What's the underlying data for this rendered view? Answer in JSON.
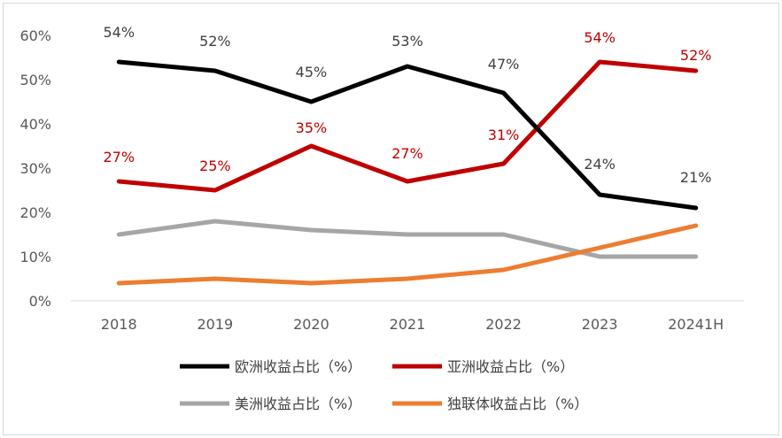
{
  "chart_data": {
    "type": "line",
    "categories": [
      "2018",
      "2019",
      "2020",
      "2021",
      "2022",
      "2023",
      "20241H"
    ],
    "y_ticks": [
      "0%",
      "10%",
      "20%",
      "30%",
      "40%",
      "50%",
      "60%"
    ],
    "ylim": [
      0,
      60
    ],
    "grid": false,
    "legend_position": "bottom",
    "series": [
      {
        "name": "欧洲收益占比（%）",
        "color": "#000000",
        "values": [
          54,
          52,
          45,
          53,
          47,
          24,
          21
        ],
        "labels": [
          "54%",
          "52%",
          "45%",
          "53%",
          "47%",
          "24%",
          "21%"
        ],
        "label_color": "#404040"
      },
      {
        "name": "亚洲收益占比（%）",
        "color": "#c00000",
        "values": [
          27,
          25,
          35,
          27,
          31,
          54,
          52
        ],
        "labels": [
          "27%",
          "25%",
          "35%",
          "27%",
          "31%",
          "54%",
          "52%"
        ],
        "label_color": "#c00000"
      },
      {
        "name": "美洲收益占比（%）",
        "color": "#a6a6a6",
        "values": [
          15,
          18,
          16,
          15,
          15,
          10,
          10
        ],
        "labels": null
      },
      {
        "name": "独联体收益占比（%）",
        "color": "#ed7d31",
        "values": [
          4,
          5,
          4,
          5,
          7,
          12,
          17
        ],
        "labels": null
      }
    ]
  }
}
